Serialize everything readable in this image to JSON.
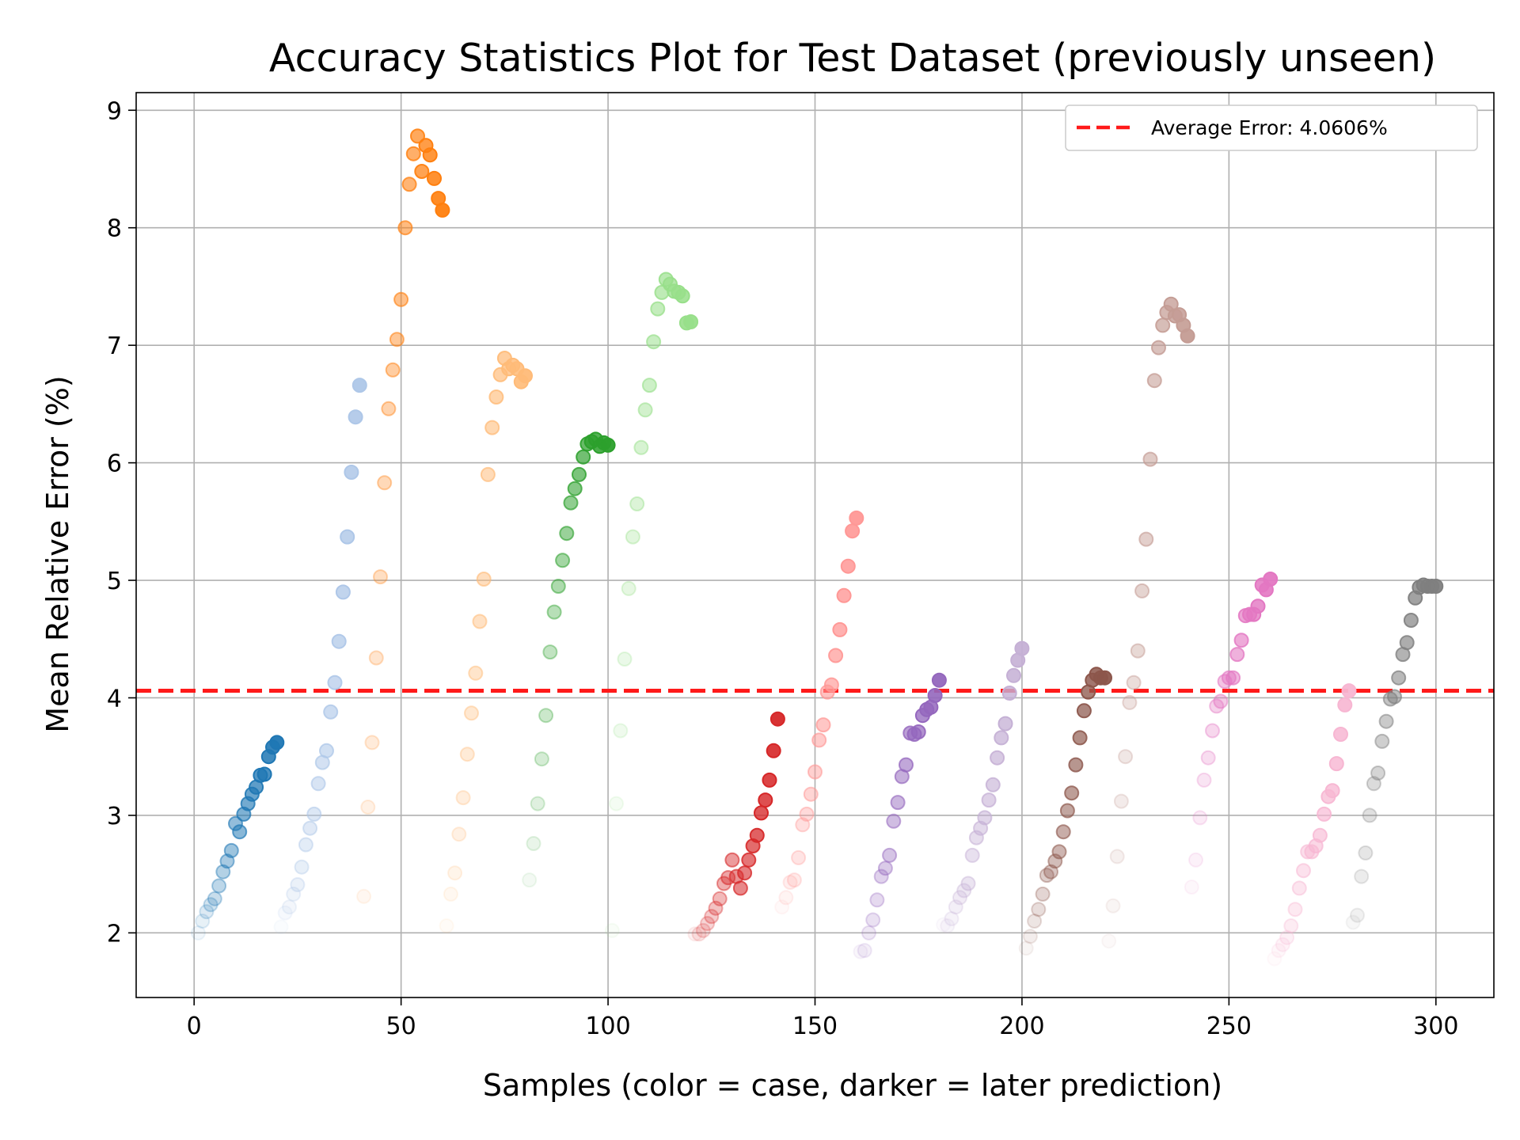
{
  "chart_data": {
    "type": "scatter",
    "title": "Accuracy Statistics Plot for Test Dataset (previously unseen)",
    "xlabel": "Samples (color = case, darker = later prediction)",
    "ylabel": "Mean Relative Error (%)",
    "xlim": [
      -14,
      314
    ],
    "ylim": [
      1.45,
      9.15
    ],
    "xticks": [
      0,
      50,
      100,
      150,
      200,
      250,
      300
    ],
    "yticks": [
      2,
      3,
      4,
      5,
      6,
      7,
      8,
      9
    ],
    "grid": true,
    "legend_position": "top-right",
    "reference_line": {
      "label": "Average Error: 4.0606%",
      "y": 4.0606,
      "color": "#ff1a1a"
    },
    "series": [
      {
        "case": 1,
        "color": "#1f77b4",
        "points": [
          [
            1,
            2.0
          ],
          [
            2,
            2.1
          ],
          [
            3,
            2.18
          ],
          [
            4,
            2.24
          ],
          [
            5,
            2.29
          ],
          [
            6,
            2.4
          ],
          [
            7,
            2.52
          ],
          [
            8,
            2.61
          ],
          [
            9,
            2.7
          ],
          [
            10,
            2.93
          ],
          [
            11,
            2.86
          ],
          [
            12,
            3.01
          ],
          [
            13,
            3.1
          ],
          [
            14,
            3.18
          ],
          [
            15,
            3.24
          ],
          [
            16,
            3.34
          ],
          [
            17,
            3.35
          ],
          [
            18,
            3.5
          ],
          [
            19,
            3.58
          ],
          [
            20,
            3.62
          ]
        ]
      },
      {
        "case": 2,
        "color": "#aec7e8",
        "points": [
          [
            21,
            2.05
          ],
          [
            22,
            2.17
          ],
          [
            23,
            2.22
          ],
          [
            24,
            2.33
          ],
          [
            25,
            2.41
          ],
          [
            26,
            2.56
          ],
          [
            27,
            2.75
          ],
          [
            28,
            2.89
          ],
          [
            29,
            3.01
          ],
          [
            30,
            3.27
          ],
          [
            31,
            3.45
          ],
          [
            32,
            3.55
          ],
          [
            33,
            3.88
          ],
          [
            34,
            4.13
          ],
          [
            35,
            4.48
          ],
          [
            36,
            4.9
          ],
          [
            37,
            5.37
          ],
          [
            38,
            5.92
          ],
          [
            39,
            6.39
          ],
          [
            40,
            6.66
          ]
        ]
      },
      {
        "case": 3,
        "color": "#ff7f0e",
        "points": [
          [
            41,
            2.31
          ],
          [
            42,
            3.07
          ],
          [
            43,
            3.62
          ],
          [
            44,
            4.34
          ],
          [
            45,
            5.03
          ],
          [
            46,
            5.83
          ],
          [
            47,
            6.46
          ],
          [
            48,
            6.79
          ],
          [
            49,
            7.05
          ],
          [
            50,
            7.39
          ],
          [
            51,
            8.0
          ],
          [
            52,
            8.37
          ],
          [
            53,
            8.63
          ],
          [
            54,
            8.78
          ],
          [
            55,
            8.48
          ],
          [
            56,
            8.7
          ],
          [
            57,
            8.62
          ],
          [
            58,
            8.42
          ],
          [
            59,
            8.25
          ],
          [
            60,
            8.15
          ]
        ]
      },
      {
        "case": 4,
        "color": "#ffbb78",
        "points": [
          [
            61,
            2.06
          ],
          [
            62,
            2.33
          ],
          [
            63,
            2.51
          ],
          [
            64,
            2.84
          ],
          [
            65,
            3.15
          ],
          [
            66,
            3.52
          ],
          [
            67,
            3.87
          ],
          [
            68,
            4.21
          ],
          [
            69,
            4.65
          ],
          [
            70,
            5.01
          ],
          [
            71,
            5.9
          ],
          [
            72,
            6.3
          ],
          [
            73,
            6.56
          ],
          [
            74,
            6.75
          ],
          [
            75,
            6.89
          ],
          [
            76,
            6.8
          ],
          [
            77,
            6.83
          ],
          [
            78,
            6.8
          ],
          [
            79,
            6.69
          ],
          [
            80,
            6.74
          ]
        ]
      },
      {
        "case": 5,
        "color": "#2ca02c",
        "points": [
          [
            81,
            2.45
          ],
          [
            82,
            2.76
          ],
          [
            83,
            3.1
          ],
          [
            84,
            3.48
          ],
          [
            85,
            3.85
          ],
          [
            86,
            4.39
          ],
          [
            87,
            4.73
          ],
          [
            88,
            4.95
          ],
          [
            89,
            5.17
          ],
          [
            90,
            5.4
          ],
          [
            91,
            5.66
          ],
          [
            92,
            5.78
          ],
          [
            93,
            5.9
          ],
          [
            94,
            6.05
          ],
          [
            95,
            6.16
          ],
          [
            96,
            6.18
          ],
          [
            97,
            6.2
          ],
          [
            98,
            6.14
          ],
          [
            99,
            6.17
          ],
          [
            100,
            6.15
          ]
        ]
      },
      {
        "case": 6,
        "color": "#98df8a",
        "points": [
          [
            101,
            2.02
          ],
          [
            102,
            3.1
          ],
          [
            103,
            3.72
          ],
          [
            104,
            4.33
          ],
          [
            105,
            4.93
          ],
          [
            106,
            5.37
          ],
          [
            107,
            5.65
          ],
          [
            108,
            6.13
          ],
          [
            109,
            6.45
          ],
          [
            110,
            6.66
          ],
          [
            111,
            7.03
          ],
          [
            112,
            7.31
          ],
          [
            113,
            7.45
          ],
          [
            114,
            7.56
          ],
          [
            115,
            7.52
          ],
          [
            116,
            7.46
          ],
          [
            117,
            7.45
          ],
          [
            118,
            7.42
          ],
          [
            119,
            7.19
          ],
          [
            120,
            7.2
          ]
        ]
      },
      {
        "case": 7,
        "color": "#d62728",
        "points": [
          [
            121,
            1.99
          ],
          [
            122,
            1.99
          ],
          [
            123,
            2.02
          ],
          [
            124,
            2.08
          ],
          [
            125,
            2.14
          ],
          [
            126,
            2.21
          ],
          [
            127,
            2.29
          ],
          [
            128,
            2.42
          ],
          [
            129,
            2.47
          ],
          [
            130,
            2.62
          ],
          [
            131,
            2.48
          ],
          [
            132,
            2.38
          ],
          [
            133,
            2.51
          ],
          [
            134,
            2.62
          ],
          [
            135,
            2.74
          ],
          [
            136,
            2.83
          ],
          [
            137,
            3.02
          ],
          [
            138,
            3.13
          ],
          [
            139,
            3.3
          ],
          [
            140,
            3.55
          ],
          [
            141,
            3.82
          ]
        ]
      },
      {
        "case": 8,
        "color": "#ff9896",
        "points": [
          [
            142,
            2.22
          ],
          [
            143,
            2.3
          ],
          [
            144,
            2.43
          ],
          [
            145,
            2.45
          ],
          [
            146,
            2.64
          ],
          [
            147,
            2.92
          ],
          [
            148,
            3.01
          ],
          [
            149,
            3.18
          ],
          [
            150,
            3.37
          ],
          [
            151,
            3.64
          ],
          [
            152,
            3.77
          ],
          [
            153,
            4.05
          ],
          [
            154,
            4.11
          ],
          [
            155,
            4.36
          ],
          [
            156,
            4.58
          ],
          [
            157,
            4.87
          ],
          [
            158,
            5.12
          ],
          [
            159,
            5.42
          ],
          [
            160,
            5.53
          ]
        ]
      },
      {
        "case": 9,
        "color": "#9467bd",
        "points": [
          [
            161,
            1.84
          ],
          [
            162,
            1.85
          ],
          [
            163,
            2.0
          ],
          [
            164,
            2.11
          ],
          [
            165,
            2.28
          ],
          [
            166,
            2.48
          ],
          [
            167,
            2.55
          ],
          [
            168,
            2.66
          ],
          [
            169,
            2.95
          ],
          [
            170,
            3.11
          ],
          [
            171,
            3.33
          ],
          [
            172,
            3.43
          ],
          [
            173,
            3.7
          ],
          [
            174,
            3.69
          ],
          [
            175,
            3.71
          ],
          [
            176,
            3.85
          ],
          [
            177,
            3.9
          ],
          [
            178,
            3.92
          ],
          [
            179,
            4.02
          ],
          [
            180,
            4.15
          ]
        ]
      },
      {
        "case": 10,
        "color": "#c5b0d5",
        "points": [
          [
            181,
            2.07
          ],
          [
            182,
            2.06
          ],
          [
            183,
            2.12
          ],
          [
            184,
            2.22
          ],
          [
            185,
            2.3
          ],
          [
            186,
            2.36
          ],
          [
            187,
            2.42
          ],
          [
            188,
            2.66
          ],
          [
            189,
            2.81
          ],
          [
            190,
            2.89
          ],
          [
            191,
            2.98
          ],
          [
            192,
            3.13
          ],
          [
            193,
            3.26
          ],
          [
            194,
            3.49
          ],
          [
            195,
            3.66
          ],
          [
            196,
            3.78
          ],
          [
            197,
            4.04
          ],
          [
            198,
            4.19
          ],
          [
            199,
            4.32
          ],
          [
            200,
            4.42
          ]
        ]
      },
      {
        "case": 11,
        "color": "#8c564b",
        "points": [
          [
            201,
            1.87
          ],
          [
            202,
            1.97
          ],
          [
            203,
            2.1
          ],
          [
            204,
            2.2
          ],
          [
            205,
            2.33
          ],
          [
            206,
            2.49
          ],
          [
            207,
            2.52
          ],
          [
            208,
            2.61
          ],
          [
            209,
            2.69
          ],
          [
            210,
            2.86
          ],
          [
            211,
            3.04
          ],
          [
            212,
            3.19
          ],
          [
            213,
            3.43
          ],
          [
            214,
            3.66
          ],
          [
            215,
            3.89
          ],
          [
            216,
            4.05
          ],
          [
            217,
            4.15
          ],
          [
            218,
            4.2
          ],
          [
            219,
            4.17
          ],
          [
            220,
            4.17
          ]
        ]
      },
      {
        "case": 12,
        "color": "#c49c94",
        "points": [
          [
            221,
            1.93
          ],
          [
            222,
            2.23
          ],
          [
            223,
            2.65
          ],
          [
            224,
            3.12
          ],
          [
            225,
            3.5
          ],
          [
            226,
            3.96
          ],
          [
            227,
            4.13
          ],
          [
            228,
            4.4
          ],
          [
            229,
            4.91
          ],
          [
            230,
            5.35
          ],
          [
            231,
            6.03
          ],
          [
            232,
            6.7
          ],
          [
            233,
            6.98
          ],
          [
            234,
            7.17
          ],
          [
            235,
            7.28
          ],
          [
            236,
            7.35
          ],
          [
            237,
            7.25
          ],
          [
            238,
            7.26
          ],
          [
            239,
            7.17
          ],
          [
            240,
            7.08
          ]
        ]
      },
      {
        "case": 13,
        "color": "#e377c2",
        "points": [
          [
            241,
            2.39
          ],
          [
            242,
            2.62
          ],
          [
            243,
            2.98
          ],
          [
            244,
            3.3
          ],
          [
            245,
            3.49
          ],
          [
            246,
            3.72
          ],
          [
            247,
            3.93
          ],
          [
            248,
            3.97
          ],
          [
            249,
            4.14
          ],
          [
            250,
            4.17
          ],
          [
            251,
            4.17
          ],
          [
            252,
            4.37
          ],
          [
            253,
            4.49
          ],
          [
            254,
            4.7
          ],
          [
            255,
            4.71
          ],
          [
            256,
            4.71
          ],
          [
            257,
            4.78
          ],
          [
            258,
            4.96
          ],
          [
            259,
            4.92
          ],
          [
            260,
            5.01
          ]
        ]
      },
      {
        "case": 14,
        "color": "#f7b6d2",
        "points": [
          [
            261,
            1.78
          ],
          [
            262,
            1.85
          ],
          [
            263,
            1.9
          ],
          [
            264,
            1.96
          ],
          [
            265,
            2.06
          ],
          [
            266,
            2.2
          ],
          [
            267,
            2.38
          ],
          [
            268,
            2.53
          ],
          [
            269,
            2.69
          ],
          [
            270,
            2.69
          ],
          [
            271,
            2.74
          ],
          [
            272,
            2.83
          ],
          [
            273,
            3.01
          ],
          [
            274,
            3.16
          ],
          [
            275,
            3.21
          ],
          [
            276,
            3.44
          ],
          [
            277,
            3.69
          ],
          [
            278,
            3.94
          ],
          [
            279,
            4.06
          ]
        ]
      },
      {
        "case": 15,
        "color": "#7f7f7f",
        "points": [
          [
            280,
            2.09
          ],
          [
            281,
            2.15
          ],
          [
            282,
            2.48
          ],
          [
            283,
            2.68
          ],
          [
            284,
            3.0
          ],
          [
            285,
            3.27
          ],
          [
            286,
            3.36
          ],
          [
            287,
            3.63
          ],
          [
            288,
            3.8
          ],
          [
            289,
            3.99
          ],
          [
            290,
            4.01
          ],
          [
            291,
            4.17
          ],
          [
            292,
            4.37
          ],
          [
            293,
            4.47
          ],
          [
            294,
            4.66
          ],
          [
            295,
            4.85
          ],
          [
            296,
            4.94
          ],
          [
            297,
            4.96
          ],
          [
            298,
            4.95
          ],
          [
            299,
            4.95
          ],
          [
            300,
            4.95
          ]
        ]
      }
    ]
  }
}
